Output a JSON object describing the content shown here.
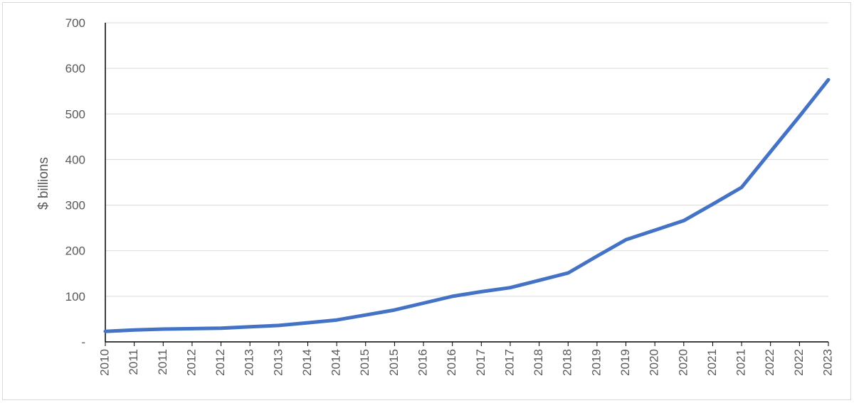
{
  "chart_data": {
    "type": "line",
    "title": "",
    "xlabel": "",
    "ylabel": "$ billions",
    "ylim": [
      0,
      700
    ],
    "y_ticks": [
      0,
      100,
      200,
      300,
      400,
      500,
      600,
      700
    ],
    "y_tick_labels": [
      "-",
      "100",
      "200",
      "300",
      "400",
      "500",
      "600",
      "700"
    ],
    "grid": "horizontal",
    "legend": "none",
    "x_tick_labels": [
      "2010",
      "2011",
      "2011",
      "2012",
      "2012",
      "2013",
      "2013",
      "2014",
      "2014",
      "2015",
      "2015",
      "2016",
      "2016",
      "2017",
      "2017",
      "2018",
      "2018",
      "2019",
      "2019",
      "2020",
      "2020",
      "2021",
      "2021",
      "2022",
      "2022",
      "2023"
    ],
    "series": [
      {
        "color": "#4472c4",
        "values": [
          23,
          26,
          28,
          29,
          30,
          33,
          36,
          42,
          48,
          59,
          70,
          85,
          100,
          110,
          119,
          135,
          151,
          188,
          224,
          245,
          266,
          302,
          339,
          417,
          495,
          575
        ]
      }
    ]
  }
}
